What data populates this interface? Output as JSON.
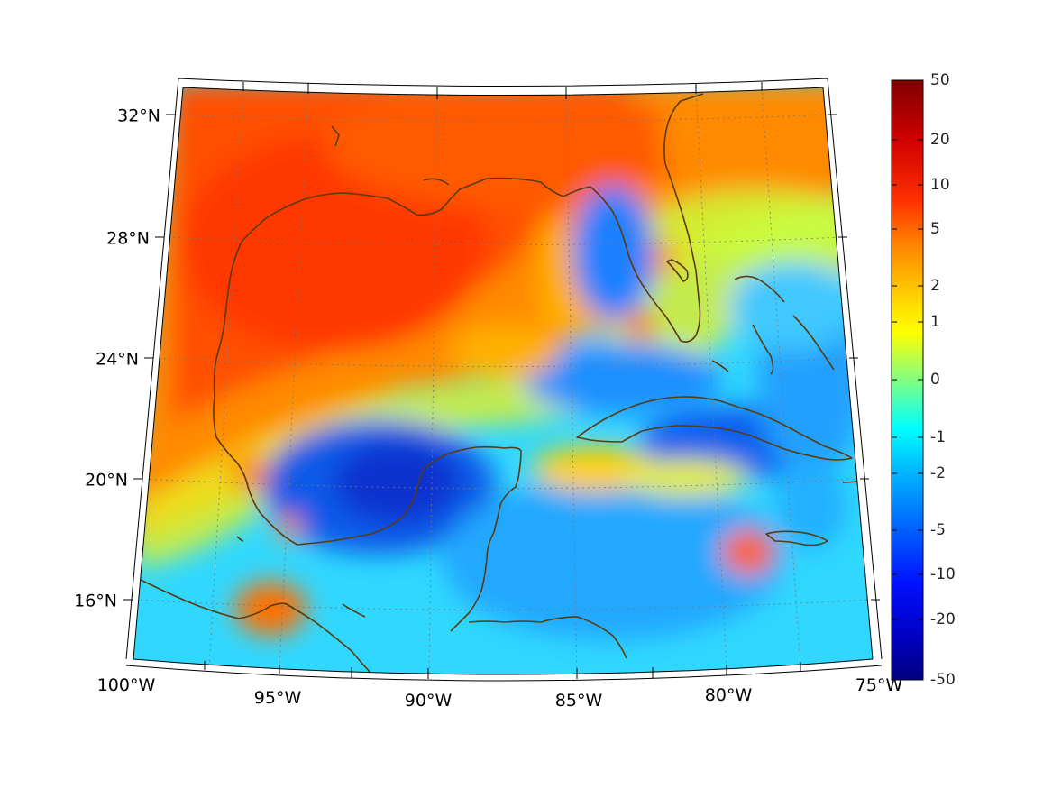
{
  "map": {
    "projection": "conic (Lambert-style), graticule curved",
    "lon_range": [
      -100,
      -75
    ],
    "lat_range": [
      14,
      33
    ],
    "field": "gridded scalar anomaly field over Gulf of Mexico and Caribbean",
    "coastline_color": "#5a3a10",
    "graticule_style": "dotted grey"
  },
  "lat_labels": [
    "32°N",
    "28°N",
    "24°N",
    "20°N",
    "16°N"
  ],
  "lon_labels": [
    "100°W",
    "95°W",
    "90°W",
    "85°W",
    "80°W",
    "75°W"
  ],
  "colorbar": {
    "colormap": "jet",
    "scale": "nonlinear (symmetric log-like)",
    "ticks": [
      "50",
      "20",
      "10",
      "5",
      "2",
      "1",
      "0",
      "-1",
      "-2",
      "-5",
      "-10",
      "-20",
      "-50"
    ],
    "colors": [
      "#800000",
      "#ff0000",
      "#ff8000",
      "#ffff00",
      "#80ff80",
      "#00ffff",
      "#0080ff",
      "#0000ff",
      "#000080"
    ]
  },
  "regions": [
    {
      "name": "northern Gulf",
      "level": "warm orange/red (~5 to 10)"
    },
    {
      "name": "Bay of Campeche",
      "level": "blue (~-5)"
    },
    {
      "name": "Caribbean",
      "level": "cyan/blue (~-2 to -5)"
    },
    {
      "name": "western Florida shelf",
      "level": "blue (~-5)"
    },
    {
      "name": "south of Jamaica",
      "level": "orange (~5)"
    }
  ]
}
